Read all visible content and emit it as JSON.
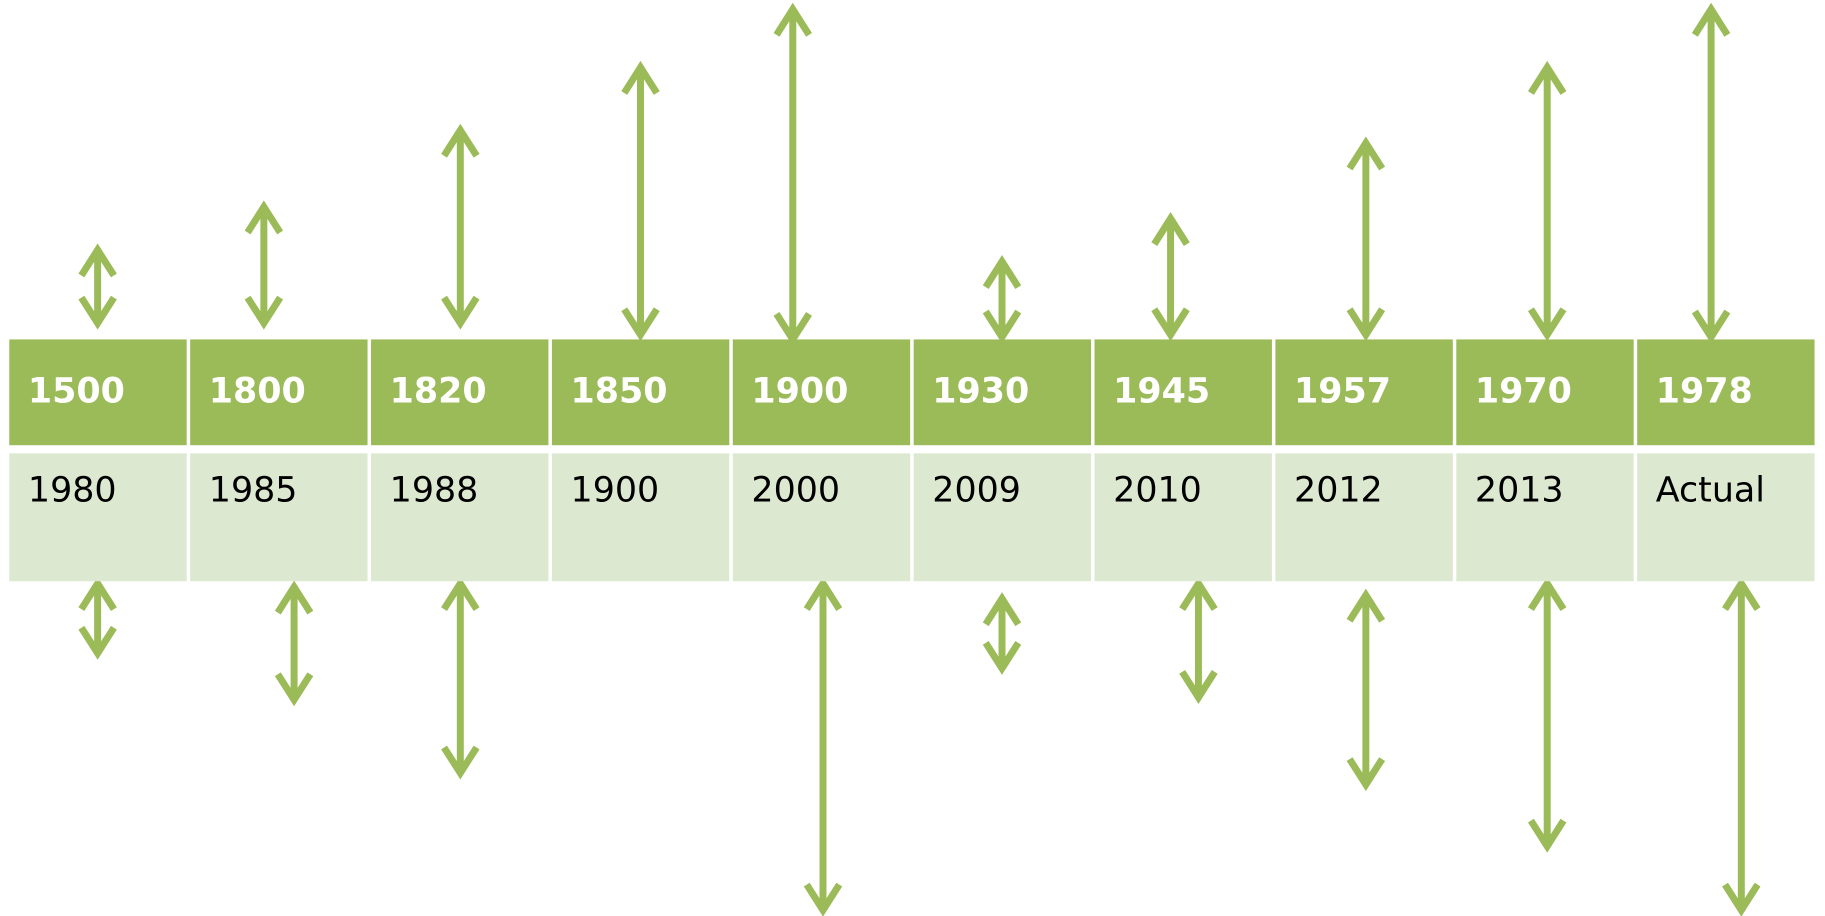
{
  "table": {
    "rows": [
      [
        "1500",
        "1800",
        "1820",
        "1850",
        "1900",
        "1930",
        "1945",
        "1957",
        "1970",
        "1978"
      ],
      [
        "1980",
        "1985",
        "1988",
        "1900",
        "2000",
        "2009",
        "2010",
        "2012",
        "2013",
        "Actual"
      ]
    ]
  }
}
